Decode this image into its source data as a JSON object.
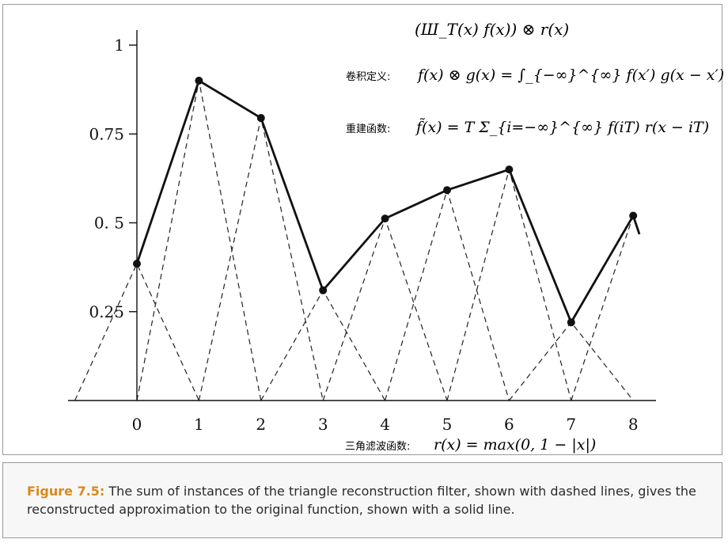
{
  "chart_data": {
    "type": "line",
    "x": [
      0,
      1,
      2,
      3,
      4,
      5,
      6,
      7,
      8
    ],
    "series": [
      {
        "values": [
          0.385,
          0.9,
          0.795,
          0.31,
          0.512,
          0.592,
          0.65,
          0.22,
          0.52
        ]
      }
    ],
    "xticks": [
      "0",
      "1",
      "2",
      "3",
      "4",
      "5",
      "6",
      "7",
      "8"
    ],
    "yticks": [
      "1",
      "0.75",
      "0. 5",
      "0.25"
    ],
    "ytick_values": [
      1,
      0.75,
      0.5,
      0.25
    ],
    "xlim": [
      -1.05,
      8.35
    ],
    "ylim": [
      0,
      1.05
    ],
    "grid": false,
    "dashed_triangles": "triangle reconstruction filter r(x - i) scaled by each sample value",
    "colors": {
      "line": "#111111",
      "dashed": "#222222",
      "axis": "#111111"
    }
  },
  "annotations": {
    "top_formula": "(Ш_T(x) f(x)) ⊗ r(x)",
    "conv_label": "卷积定义:",
    "conv_formula": "f(x) ⊗ g(x) = ∫_{−∞}^{∞} f(x′) g(x − x′) dx′",
    "recon_label": "重建函数:",
    "recon_formula": "f̃(x) = T Σ_{i=−∞}^{∞} f(iT) r(x − iT)",
    "filter_label": "三角滤波函数:",
    "filter_formula": "r(x) = max(0, 1 − |x|)"
  },
  "caption": {
    "label": "Figure 7.5:",
    "text": " The sum of instances of the triangle reconstruction filter, shown with dashed lines, gives the reconstructed approximation to the original function, shown with a solid line."
  }
}
